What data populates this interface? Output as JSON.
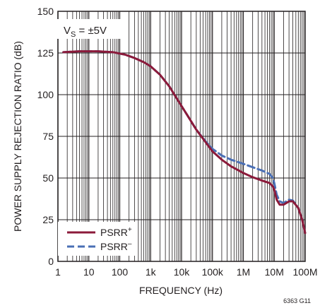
{
  "chart_data": {
    "type": "line",
    "title": "",
    "xlabel": "FREQUENCY (Hz)",
    "ylabel": "POWER SUPPLY REJECTION RATIO (dB)",
    "x_scale": "log",
    "xlim": [
      1,
      100000000
    ],
    "ylim": [
      0,
      150
    ],
    "x_ticks": [
      1,
      10,
      100,
      1000,
      10000,
      100000,
      1000000,
      10000000,
      100000000
    ],
    "x_tick_labels": [
      "1",
      "10",
      "100",
      "1k",
      "10k",
      "100k",
      "1M",
      "10M",
      "100M"
    ],
    "y_ticks": [
      0,
      25,
      50,
      75,
      100,
      125,
      150
    ],
    "y_tick_labels": [
      "0",
      "25",
      "50",
      "75",
      "100",
      "125",
      "150"
    ],
    "grid": true,
    "legend_position": "bottom-left",
    "annotation": {
      "main": "V",
      "sub": "S",
      "rest": " = ±5V"
    },
    "footnote": "6363 G11",
    "series": [
      {
        "name": "PSRR+",
        "label_main": "PSRR",
        "label_sup": "+",
        "color": "#8b1a3a",
        "style": "solid",
        "x": [
          1.5,
          5,
          20,
          60,
          150,
          300,
          600,
          1000,
          2000,
          4000,
          8000,
          15000,
          30000,
          60000,
          100000,
          200000,
          400000,
          1000000,
          2000000,
          4000000,
          7000000,
          9000000,
          10000000,
          12000000,
          15000000,
          20000000,
          30000000,
          40000000,
          60000000,
          80000000,
          100000000
        ],
        "y": [
          125.5,
          126,
          126,
          125.5,
          124,
          122,
          119.5,
          117,
          112,
          105,
          96,
          88,
          79,
          71.5,
          66,
          61,
          57,
          53,
          50.5,
          48.5,
          47,
          45,
          43,
          37,
          34,
          34,
          36,
          36,
          32,
          25,
          17
        ]
      },
      {
        "name": "PSRR−",
        "label_main": "PSRR",
        "label_sup": "–",
        "color": "#4a6fb5",
        "style": "dashed",
        "x": [
          1.5,
          5,
          20,
          60,
          150,
          300,
          600,
          1000,
          2000,
          4000,
          8000,
          15000,
          30000,
          60000,
          100000,
          200000,
          400000,
          1000000,
          2000000,
          4000000,
          7000000,
          9000000,
          10000000,
          12000000,
          15000000,
          20000000,
          30000000,
          40000000,
          60000000,
          80000000,
          100000000
        ],
        "y": [
          125.5,
          126,
          126,
          125.5,
          124,
          122,
          119.5,
          117,
          112,
          105,
          96,
          88,
          79,
          72,
          67.5,
          63.5,
          61,
          58.5,
          56.5,
          54.5,
          52.5,
          50,
          47,
          40,
          36,
          35,
          37,
          36.5,
          32,
          25,
          17
        ]
      }
    ]
  }
}
